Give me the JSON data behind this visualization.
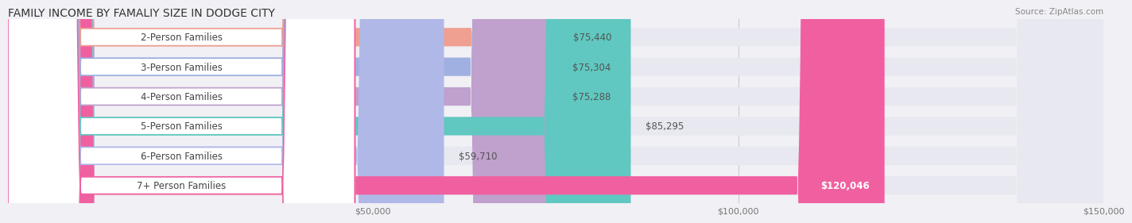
{
  "title": "FAMILY INCOME BY FAMALIY SIZE IN DODGE CITY",
  "source": "Source: ZipAtlas.com",
  "categories": [
    "2-Person Families",
    "3-Person Families",
    "4-Person Families",
    "5-Person Families",
    "6-Person Families",
    "7+ Person Families"
  ],
  "values": [
    75440,
    75304,
    75288,
    85295,
    59710,
    120046
  ],
  "bar_colors": [
    "#f0a090",
    "#a0b0e0",
    "#c0a0cc",
    "#60c8c0",
    "#b0b8e8",
    "#f060a0"
  ],
  "label_colors": [
    "#f0a090",
    "#a0b0e0",
    "#c0a0cc",
    "#60c8c0",
    "#b0b8e8",
    "#f060a0"
  ],
  "value_labels": [
    "$75,440",
    "$75,304",
    "$75,288",
    "$85,295",
    "$59,710",
    "$120,046"
  ],
  "xlim": [
    0,
    150000
  ],
  "xticks": [
    0,
    50000,
    100000,
    150000
  ],
  "xtick_labels": [
    "",
    "$50,000",
    "$100,000",
    "$150,000"
  ],
  "background_color": "#f0f0f5",
  "bar_bg_color": "#e8e8f0",
  "title_fontsize": 10,
  "bar_height": 0.62,
  "label_fontsize": 8.5,
  "value_fontsize": 8.5
}
